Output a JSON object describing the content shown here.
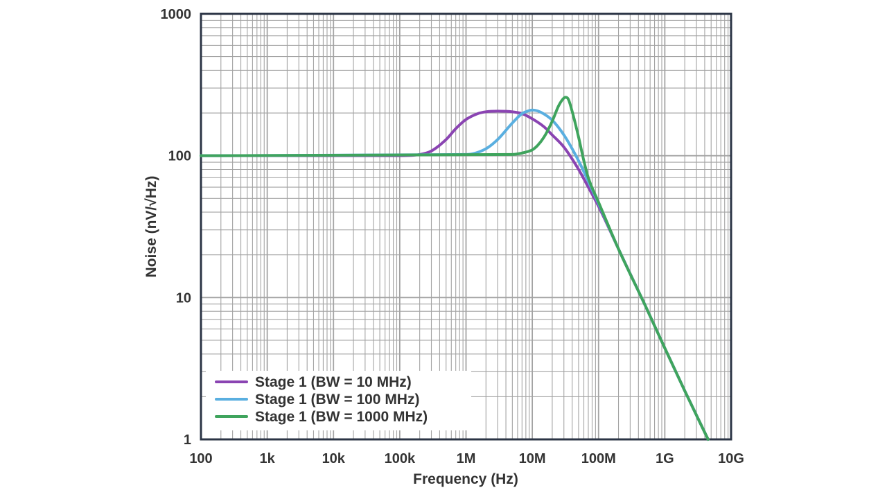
{
  "chart_data": {
    "type": "line",
    "xscale": "log",
    "yscale": "log",
    "xlim": [
      100,
      10000000000
    ],
    "ylim": [
      1,
      1000
    ],
    "grid": true,
    "legend_position": "bottom-left",
    "xlabel": "Frequency (Hz)",
    "ylabel": "Noise (nV/√Hz)",
    "xticks": [
      {
        "value": 100,
        "label": "100"
      },
      {
        "value": 1000,
        "label": "1k"
      },
      {
        "value": 10000,
        "label": "10k"
      },
      {
        "value": 100000,
        "label": "100k"
      },
      {
        "value": 1000000,
        "label": "1M"
      },
      {
        "value": 10000000,
        "label": "10M"
      },
      {
        "value": 100000000,
        "label": "100M"
      },
      {
        "value": 1000000000,
        "label": "1G"
      },
      {
        "value": 10000000000,
        "label": "10G"
      }
    ],
    "yticks": [
      {
        "value": 1,
        "label": "1"
      },
      {
        "value": 10,
        "label": "10"
      },
      {
        "value": 100,
        "label": "100"
      },
      {
        "value": 1000,
        "label": "1000"
      }
    ],
    "series": [
      {
        "name": "Stage 1 (BW = 10 MHz)",
        "color": "#8a44b2",
        "x": [
          100,
          10000,
          100000,
          200000,
          300000,
          500000,
          700000,
          1000000,
          1500000,
          2000000,
          3000000,
          5000000,
          7000000,
          10000000,
          15000000,
          20000000,
          30000000,
          50000000,
          70000000,
          100000000,
          200000000,
          500000000,
          1000000000,
          2000000000,
          4500000000
        ],
        "y": [
          100,
          100,
          100,
          102,
          108,
          130,
          155,
          180,
          198,
          204,
          206,
          204,
          198,
          182,
          160,
          140,
          115,
          80,
          60,
          44,
          22,
          8.9,
          4.4,
          2.2,
          1.0
        ]
      },
      {
        "name": "Stage 1 (BW = 100 MHz)",
        "color": "#5aafe0",
        "x": [
          100,
          1000000,
          2000000,
          3000000,
          5000000,
          7000000,
          9000000,
          10000000,
          12000000,
          15000000,
          20000000,
          30000000,
          50000000,
          70000000,
          100000000,
          200000000,
          500000000,
          1000000000,
          2000000000,
          4500000000
        ],
        "y": [
          100,
          102,
          112,
          130,
          170,
          198,
          208,
          210,
          207,
          197,
          178,
          140,
          92,
          66,
          46,
          22,
          8.9,
          4.4,
          2.2,
          1.0
        ]
      },
      {
        "name": "Stage 1 (BW = 1000 MHz)",
        "color": "#3fa45d",
        "x": [
          100,
          5000000,
          8000000,
          10000000,
          12000000,
          15000000,
          20000000,
          25000000,
          30000000,
          32000000,
          35000000,
          40000000,
          50000000,
          60000000,
          70000000,
          100000000,
          200000000,
          500000000,
          1000000000,
          2000000000,
          4500000000
        ],
        "y": [
          100,
          102,
          106,
          110,
          118,
          135,
          175,
          225,
          255,
          258,
          250,
          205,
          135,
          92,
          70,
          47,
          22,
          8.9,
          4.4,
          2.2,
          1.0
        ]
      }
    ]
  }
}
